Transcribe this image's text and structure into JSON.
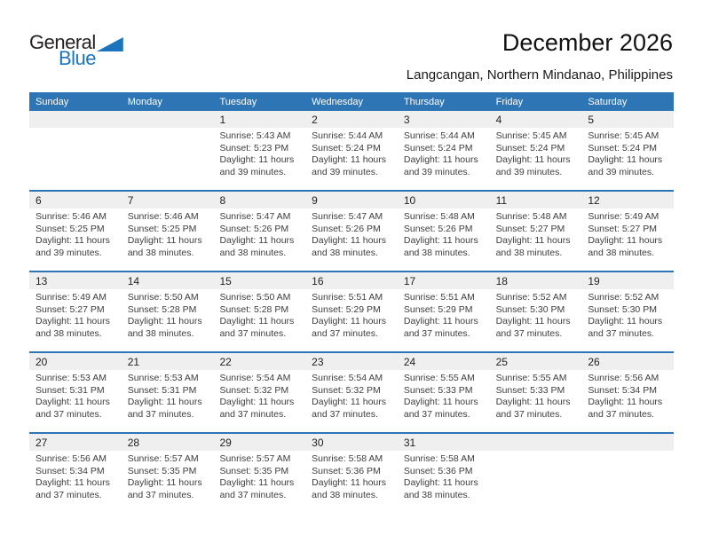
{
  "colors": {
    "header_bg": "#2E75B6",
    "separator": "#2E75B6",
    "day_band_bg": "#EFEFEF",
    "logo_blue": "#1C75BC"
  },
  "logo": {
    "general": "General",
    "blue": "Blue"
  },
  "header": {
    "title": "December 2026",
    "subtitle": "Langcangan, Northern Mindanao, Philippines"
  },
  "calendar": {
    "weekday_headers": [
      "Sunday",
      "Monday",
      "Tuesday",
      "Wednesday",
      "Thursday",
      "Friday",
      "Saturday"
    ],
    "weeks": [
      [
        null,
        null,
        {
          "day": "1",
          "sunrise": "Sunrise: 5:43 AM",
          "sunset": "Sunset: 5:23 PM",
          "daylight1": "Daylight: 11 hours",
          "daylight2": "and 39 minutes."
        },
        {
          "day": "2",
          "sunrise": "Sunrise: 5:44 AM",
          "sunset": "Sunset: 5:24 PM",
          "daylight1": "Daylight: 11 hours",
          "daylight2": "and 39 minutes."
        },
        {
          "day": "3",
          "sunrise": "Sunrise: 5:44 AM",
          "sunset": "Sunset: 5:24 PM",
          "daylight1": "Daylight: 11 hours",
          "daylight2": "and 39 minutes."
        },
        {
          "day": "4",
          "sunrise": "Sunrise: 5:45 AM",
          "sunset": "Sunset: 5:24 PM",
          "daylight1": "Daylight: 11 hours",
          "daylight2": "and 39 minutes."
        },
        {
          "day": "5",
          "sunrise": "Sunrise: 5:45 AM",
          "sunset": "Sunset: 5:24 PM",
          "daylight1": "Daylight: 11 hours",
          "daylight2": "and 39 minutes."
        }
      ],
      [
        {
          "day": "6",
          "sunrise": "Sunrise: 5:46 AM",
          "sunset": "Sunset: 5:25 PM",
          "daylight1": "Daylight: 11 hours",
          "daylight2": "and 39 minutes."
        },
        {
          "day": "7",
          "sunrise": "Sunrise: 5:46 AM",
          "sunset": "Sunset: 5:25 PM",
          "daylight1": "Daylight: 11 hours",
          "daylight2": "and 38 minutes."
        },
        {
          "day": "8",
          "sunrise": "Sunrise: 5:47 AM",
          "sunset": "Sunset: 5:26 PM",
          "daylight1": "Daylight: 11 hours",
          "daylight2": "and 38 minutes."
        },
        {
          "day": "9",
          "sunrise": "Sunrise: 5:47 AM",
          "sunset": "Sunset: 5:26 PM",
          "daylight1": "Daylight: 11 hours",
          "daylight2": "and 38 minutes."
        },
        {
          "day": "10",
          "sunrise": "Sunrise: 5:48 AM",
          "sunset": "Sunset: 5:26 PM",
          "daylight1": "Daylight: 11 hours",
          "daylight2": "and 38 minutes."
        },
        {
          "day": "11",
          "sunrise": "Sunrise: 5:48 AM",
          "sunset": "Sunset: 5:27 PM",
          "daylight1": "Daylight: 11 hours",
          "daylight2": "and 38 minutes."
        },
        {
          "day": "12",
          "sunrise": "Sunrise: 5:49 AM",
          "sunset": "Sunset: 5:27 PM",
          "daylight1": "Daylight: 11 hours",
          "daylight2": "and 38 minutes."
        }
      ],
      [
        {
          "day": "13",
          "sunrise": "Sunrise: 5:49 AM",
          "sunset": "Sunset: 5:27 PM",
          "daylight1": "Daylight: 11 hours",
          "daylight2": "and 38 minutes."
        },
        {
          "day": "14",
          "sunrise": "Sunrise: 5:50 AM",
          "sunset": "Sunset: 5:28 PM",
          "daylight1": "Daylight: 11 hours",
          "daylight2": "and 38 minutes."
        },
        {
          "day": "15",
          "sunrise": "Sunrise: 5:50 AM",
          "sunset": "Sunset: 5:28 PM",
          "daylight1": "Daylight: 11 hours",
          "daylight2": "and 37 minutes."
        },
        {
          "day": "16",
          "sunrise": "Sunrise: 5:51 AM",
          "sunset": "Sunset: 5:29 PM",
          "daylight1": "Daylight: 11 hours",
          "daylight2": "and 37 minutes."
        },
        {
          "day": "17",
          "sunrise": "Sunrise: 5:51 AM",
          "sunset": "Sunset: 5:29 PM",
          "daylight1": "Daylight: 11 hours",
          "daylight2": "and 37 minutes."
        },
        {
          "day": "18",
          "sunrise": "Sunrise: 5:52 AM",
          "sunset": "Sunset: 5:30 PM",
          "daylight1": "Daylight: 11 hours",
          "daylight2": "and 37 minutes."
        },
        {
          "day": "19",
          "sunrise": "Sunrise: 5:52 AM",
          "sunset": "Sunset: 5:30 PM",
          "daylight1": "Daylight: 11 hours",
          "daylight2": "and 37 minutes."
        }
      ],
      [
        {
          "day": "20",
          "sunrise": "Sunrise: 5:53 AM",
          "sunset": "Sunset: 5:31 PM",
          "daylight1": "Daylight: 11 hours",
          "daylight2": "and 37 minutes."
        },
        {
          "day": "21",
          "sunrise": "Sunrise: 5:53 AM",
          "sunset": "Sunset: 5:31 PM",
          "daylight1": "Daylight: 11 hours",
          "daylight2": "and 37 minutes."
        },
        {
          "day": "22",
          "sunrise": "Sunrise: 5:54 AM",
          "sunset": "Sunset: 5:32 PM",
          "daylight1": "Daylight: 11 hours",
          "daylight2": "and 37 minutes."
        },
        {
          "day": "23",
          "sunrise": "Sunrise: 5:54 AM",
          "sunset": "Sunset: 5:32 PM",
          "daylight1": "Daylight: 11 hours",
          "daylight2": "and 37 minutes."
        },
        {
          "day": "24",
          "sunrise": "Sunrise: 5:55 AM",
          "sunset": "Sunset: 5:33 PM",
          "daylight1": "Daylight: 11 hours",
          "daylight2": "and 37 minutes."
        },
        {
          "day": "25",
          "sunrise": "Sunrise: 5:55 AM",
          "sunset": "Sunset: 5:33 PM",
          "daylight1": "Daylight: 11 hours",
          "daylight2": "and 37 minutes."
        },
        {
          "day": "26",
          "sunrise": "Sunrise: 5:56 AM",
          "sunset": "Sunset: 5:34 PM",
          "daylight1": "Daylight: 11 hours",
          "daylight2": "and 37 minutes."
        }
      ],
      [
        {
          "day": "27",
          "sunrise": "Sunrise: 5:56 AM",
          "sunset": "Sunset: 5:34 PM",
          "daylight1": "Daylight: 11 hours",
          "daylight2": "and 37 minutes."
        },
        {
          "day": "28",
          "sunrise": "Sunrise: 5:57 AM",
          "sunset": "Sunset: 5:35 PM",
          "daylight1": "Daylight: 11 hours",
          "daylight2": "and 37 minutes."
        },
        {
          "day": "29",
          "sunrise": "Sunrise: 5:57 AM",
          "sunset": "Sunset: 5:35 PM",
          "daylight1": "Daylight: 11 hours",
          "daylight2": "and 37 minutes."
        },
        {
          "day": "30",
          "sunrise": "Sunrise: 5:58 AM",
          "sunset": "Sunset: 5:36 PM",
          "daylight1": "Daylight: 11 hours",
          "daylight2": "and 38 minutes."
        },
        {
          "day": "31",
          "sunrise": "Sunrise: 5:58 AM",
          "sunset": "Sunset: 5:36 PM",
          "daylight1": "Daylight: 11 hours",
          "daylight2": "and 38 minutes."
        },
        null,
        null
      ]
    ]
  }
}
